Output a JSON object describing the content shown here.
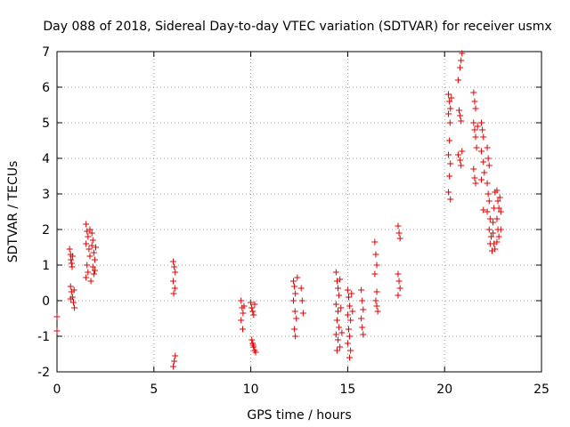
{
  "chart_data": {
    "type": "scatter",
    "title": "Day 088 of 2018, Sidereal Day-to-day VTEC variation (SDTVAR) for receiver usmx",
    "xlabel": "GPS time / hours",
    "ylabel": "SDTVAR / TECUs",
    "xlim": [
      0,
      25
    ],
    "ylim": [
      -2,
      7
    ],
    "x_ticks": [
      "0",
      "5",
      "10",
      "15",
      "20",
      "25"
    ],
    "y_ticks": [
      "-2",
      "-1",
      "0",
      "1",
      "2",
      "3",
      "4",
      "5",
      "6",
      "7"
    ],
    "grid": true,
    "marker": "plus",
    "color": "#e00000",
    "series": [
      {
        "name": "SDTVAR",
        "points": [
          [
            0.0,
            -0.45
          ],
          [
            0.0,
            -0.85
          ],
          [
            0.65,
            1.45
          ],
          [
            0.7,
            1.3
          ],
          [
            0.72,
            1.15
          ],
          [
            0.75,
            1.05
          ],
          [
            0.8,
            1.25
          ],
          [
            0.78,
            0.95
          ],
          [
            0.7,
            0.4
          ],
          [
            0.75,
            0.25
          ],
          [
            0.8,
            0.1
          ],
          [
            0.85,
            -0.05
          ],
          [
            0.9,
            -0.2
          ],
          [
            0.7,
            0.05
          ],
          [
            0.88,
            0.3
          ],
          [
            1.5,
            2.15
          ],
          [
            1.55,
            1.95
          ],
          [
            1.6,
            1.8
          ],
          [
            1.5,
            1.6
          ],
          [
            1.65,
            1.45
          ],
          [
            1.7,
            1.25
          ],
          [
            1.55,
            1.0
          ],
          [
            1.6,
            0.8
          ],
          [
            1.5,
            0.65
          ],
          [
            1.75,
            0.55
          ],
          [
            1.8,
            1.9
          ],
          [
            1.85,
            1.7
          ],
          [
            1.9,
            1.35
          ],
          [
            1.95,
            1.15
          ],
          [
            1.85,
            0.95
          ],
          [
            1.9,
            0.75
          ],
          [
            1.7,
            2.0
          ],
          [
            1.8,
            1.55
          ],
          [
            1.95,
            0.85
          ],
          [
            2.0,
            1.5
          ],
          [
            6.0,
            1.1
          ],
          [
            6.05,
            0.95
          ],
          [
            6.1,
            0.8
          ],
          [
            6.0,
            0.55
          ],
          [
            6.08,
            0.35
          ],
          [
            6.02,
            0.2
          ],
          [
            6.1,
            -1.55
          ],
          [
            6.05,
            -1.7
          ],
          [
            6.0,
            -1.85
          ],
          [
            9.5,
            0.0
          ],
          [
            9.55,
            -0.2
          ],
          [
            9.6,
            -0.35
          ],
          [
            9.5,
            -0.55
          ],
          [
            9.58,
            -0.8
          ],
          [
            9.65,
            -0.15
          ],
          [
            10.0,
            -0.05
          ],
          [
            10.05,
            -0.2
          ],
          [
            10.1,
            -0.3
          ],
          [
            10.15,
            -0.4
          ],
          [
            10.2,
            -0.1
          ],
          [
            10.05,
            -1.1
          ],
          [
            10.1,
            -1.2
          ],
          [
            10.15,
            -1.3
          ],
          [
            10.2,
            -1.4
          ],
          [
            10.25,
            -1.45
          ],
          [
            10.12,
            -1.25
          ],
          [
            12.2,
            0.55
          ],
          [
            12.25,
            0.4
          ],
          [
            12.3,
            0.2
          ],
          [
            12.2,
            0.0
          ],
          [
            12.28,
            -0.3
          ],
          [
            12.35,
            -0.5
          ],
          [
            12.25,
            -0.8
          ],
          [
            12.3,
            -1.0
          ],
          [
            12.4,
            0.65
          ],
          [
            12.6,
            0.35
          ],
          [
            12.65,
            0.0
          ],
          [
            12.7,
            -0.35
          ],
          [
            14.4,
            0.8
          ],
          [
            14.45,
            0.55
          ],
          [
            14.5,
            0.35
          ],
          [
            14.55,
            0.15
          ],
          [
            14.4,
            -0.1
          ],
          [
            14.5,
            -0.3
          ],
          [
            14.45,
            -0.55
          ],
          [
            14.55,
            -0.75
          ],
          [
            14.4,
            -0.95
          ],
          [
            14.5,
            -1.1
          ],
          [
            14.6,
            -1.3
          ],
          [
            14.45,
            -1.4
          ],
          [
            14.6,
            0.6
          ],
          [
            14.65,
            -0.2
          ],
          [
            14.7,
            -0.9
          ],
          [
            15.0,
            0.3
          ],
          [
            15.05,
            0.1
          ],
          [
            15.1,
            -0.15
          ],
          [
            15.0,
            -0.4
          ],
          [
            15.15,
            -0.55
          ],
          [
            15.05,
            -0.8
          ],
          [
            15.1,
            -1.0
          ],
          [
            15.0,
            -1.2
          ],
          [
            15.15,
            -1.4
          ],
          [
            15.1,
            -1.6
          ],
          [
            15.2,
            0.2
          ],
          [
            15.25,
            -0.3
          ],
          [
            15.7,
            0.3
          ],
          [
            15.75,
            0.0
          ],
          [
            15.8,
            -0.25
          ],
          [
            15.7,
            -0.5
          ],
          [
            15.75,
            -0.75
          ],
          [
            15.8,
            -0.95
          ],
          [
            16.4,
            1.65
          ],
          [
            16.45,
            1.3
          ],
          [
            16.5,
            1.0
          ],
          [
            16.4,
            0.75
          ],
          [
            16.5,
            0.25
          ],
          [
            16.45,
            0.0
          ],
          [
            16.5,
            -0.15
          ],
          [
            16.55,
            -0.3
          ],
          [
            17.6,
            2.1
          ],
          [
            17.65,
            1.9
          ],
          [
            17.7,
            1.75
          ],
          [
            17.6,
            0.75
          ],
          [
            17.65,
            0.55
          ],
          [
            17.7,
            0.35
          ],
          [
            17.6,
            0.15
          ],
          [
            20.2,
            5.8
          ],
          [
            20.25,
            5.6
          ],
          [
            20.3,
            5.4
          ],
          [
            20.2,
            5.25
          ],
          [
            20.28,
            5.0
          ],
          [
            20.25,
            4.5
          ],
          [
            20.2,
            4.1
          ],
          [
            20.3,
            3.85
          ],
          [
            20.25,
            3.5
          ],
          [
            20.2,
            3.05
          ],
          [
            20.3,
            2.85
          ],
          [
            20.35,
            5.7
          ],
          [
            20.7,
            6.2
          ],
          [
            20.8,
            6.55
          ],
          [
            20.85,
            6.75
          ],
          [
            20.9,
            6.95
          ],
          [
            20.75,
            5.35
          ],
          [
            20.8,
            5.2
          ],
          [
            20.85,
            5.05
          ],
          [
            20.7,
            4.1
          ],
          [
            20.8,
            3.95
          ],
          [
            20.85,
            3.8
          ],
          [
            20.9,
            4.2
          ],
          [
            21.5,
            5.85
          ],
          [
            21.55,
            5.6
          ],
          [
            21.6,
            5.4
          ],
          [
            21.5,
            5.0
          ],
          [
            21.55,
            4.8
          ],
          [
            21.6,
            4.6
          ],
          [
            21.65,
            4.3
          ],
          [
            21.5,
            3.7
          ],
          [
            21.55,
            3.45
          ],
          [
            21.6,
            3.3
          ],
          [
            21.7,
            4.9
          ],
          [
            21.9,
            5.0
          ],
          [
            21.95,
            4.8
          ],
          [
            22.0,
            4.6
          ],
          [
            21.9,
            4.2
          ],
          [
            22.0,
            3.9
          ],
          [
            22.05,
            3.6
          ],
          [
            21.9,
            3.4
          ],
          [
            22.0,
            2.55
          ],
          [
            22.2,
            4.3
          ],
          [
            22.25,
            4.0
          ],
          [
            22.3,
            3.8
          ],
          [
            22.2,
            3.3
          ],
          [
            22.25,
            3.0
          ],
          [
            22.3,
            2.8
          ],
          [
            22.2,
            2.5
          ],
          [
            22.35,
            2.3
          ],
          [
            22.3,
            2.0
          ],
          [
            22.4,
            1.8
          ],
          [
            22.35,
            1.6
          ],
          [
            22.45,
            1.4
          ],
          [
            22.5,
            2.2
          ],
          [
            22.55,
            2.6
          ],
          [
            22.6,
            3.05
          ],
          [
            22.5,
            1.9
          ],
          [
            22.55,
            1.6
          ],
          [
            22.6,
            1.45
          ],
          [
            22.7,
            3.1
          ],
          [
            22.75,
            2.8
          ],
          [
            22.8,
            2.6
          ],
          [
            22.7,
            2.3
          ],
          [
            22.75,
            2.0
          ],
          [
            22.8,
            1.8
          ],
          [
            22.7,
            1.65
          ],
          [
            22.85,
            2.9
          ],
          [
            22.9,
            2.5
          ],
          [
            22.9,
            2.0
          ]
        ]
      }
    ]
  }
}
